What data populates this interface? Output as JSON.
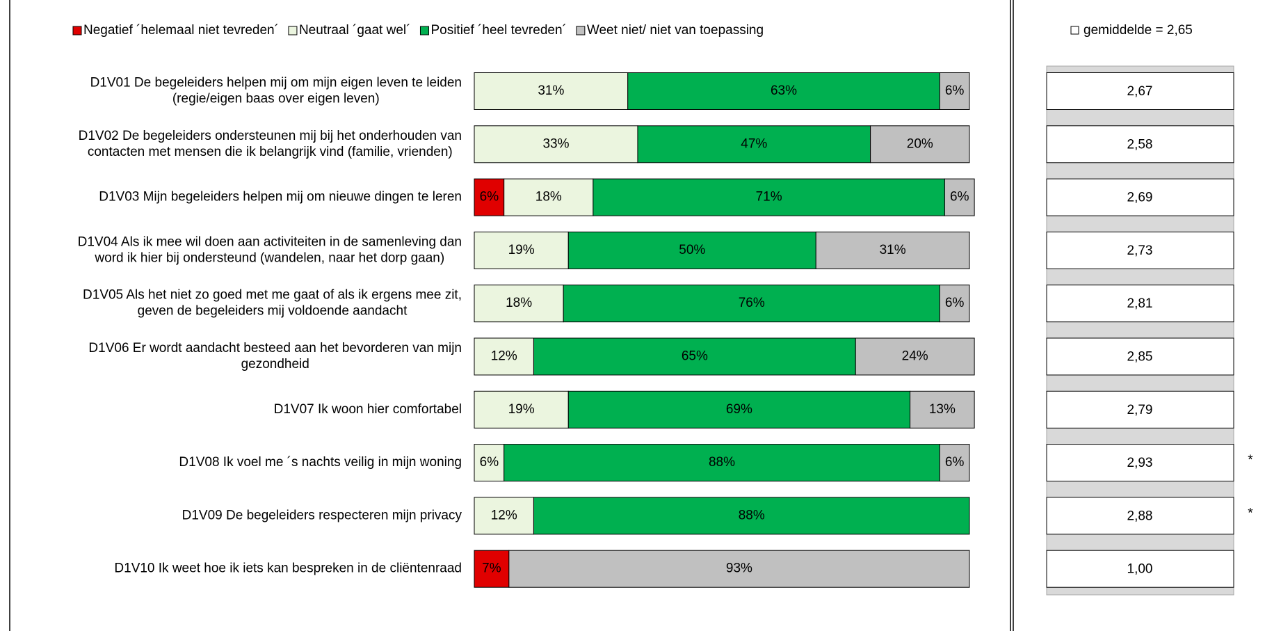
{
  "chart_data": {
    "type": "stacked-bar-horizontal",
    "categories": [
      [
        "D1V01   De begeleiders helpen mij om mijn eigen leven te leiden",
        "(regie/eigen baas over eigen leven)"
      ],
      [
        "D1V02   De begeleiders ondersteunen mij bij het onderhouden van",
        "contacten met mensen die ik belangrijk vind (familie, vrienden)"
      ],
      [
        "D1V03   Mijn begeleiders helpen mij om nieuwe dingen te leren"
      ],
      [
        "D1V04   Als ik mee wil doen aan activiteiten in de samenleving dan",
        "word ik hier bij ondersteund (wandelen, naar het dorp gaan)"
      ],
      [
        "D1V05   Als het niet zo goed met me gaat of als ik ergens mee zit,",
        "geven de begeleiders mij voldoende aandacht"
      ],
      [
        "D1V06   Er wordt aandacht besteed aan het bevorderen van mijn",
        "gezondheid"
      ],
      [
        "D1V07   Ik woon hier comfortabel"
      ],
      [
        "D1V08   Ik voel me ´s nachts veilig in mijn woning"
      ],
      [
        "D1V09   De begeleiders respecteren mijn privacy"
      ],
      [
        "D1V10   Ik weet hoe ik iets kan bespreken in de cliëntenraad"
      ]
    ],
    "series": [
      {
        "name": "Negatief ´helemaal niet tevreden´",
        "color": "#e00000",
        "label_color": "#000000",
        "values": [
          0,
          0,
          6,
          0,
          0,
          0,
          0,
          0,
          0,
          7
        ],
        "value_labels": [
          null,
          null,
          "6%",
          null,
          null,
          null,
          null,
          null,
          null,
          "7%"
        ]
      },
      {
        "name": "Neutraal ´gaat wel´",
        "color": "#ebf5df",
        "label_color": "#000000",
        "values": [
          31,
          33,
          18,
          19,
          18,
          12,
          19,
          6,
          12,
          0
        ],
        "value_labels": [
          "31%",
          "33%",
          "18%",
          "19%",
          "18%",
          "12%",
          "19%",
          "6%",
          "12%",
          null
        ]
      },
      {
        "name": "Positief ´heel tevreden´",
        "color": "#00b050",
        "label_color": "#000000",
        "values": [
          63,
          47,
          71,
          50,
          76,
          65,
          69,
          88,
          88,
          0
        ],
        "value_labels": [
          "63%",
          "47%",
          "71%",
          "50%",
          "76%",
          "65%",
          "69%",
          "88%",
          "88%",
          null
        ]
      },
      {
        "name": "Weet niet/ niet van toepassing",
        "color": "#c0c0c0",
        "label_color": "#ffffff",
        "values": [
          6,
          20,
          6,
          31,
          6,
          24,
          13,
          6,
          0,
          93
        ],
        "value_labels": [
          "6%",
          "20%",
          "6%",
          "31%",
          "6%",
          "24%",
          "13%",
          "6%",
          null,
          "93%"
        ]
      }
    ],
    "averages": {
      "legend": "gemiddelde = 2,65",
      "values": [
        2.67,
        2.58,
        2.69,
        2.73,
        2.81,
        2.85,
        2.79,
        2.93,
        2.88,
        1.0
      ],
      "value_labels": [
        "2,67",
        "2,58",
        "2,69",
        "2,73",
        "2,81",
        "2,85",
        "2,79",
        "2,93",
        "2,88",
        "1,00"
      ],
      "colors": [
        "#33dd33",
        "#ff0000",
        "#33dd33",
        "#33dd33",
        "#33dd33",
        "#33dd33",
        "#33dd33",
        "#33dd33",
        "#33dd33",
        "#ff0000"
      ],
      "markers": [
        null,
        null,
        null,
        null,
        null,
        null,
        null,
        "*",
        "*",
        null
      ]
    }
  }
}
